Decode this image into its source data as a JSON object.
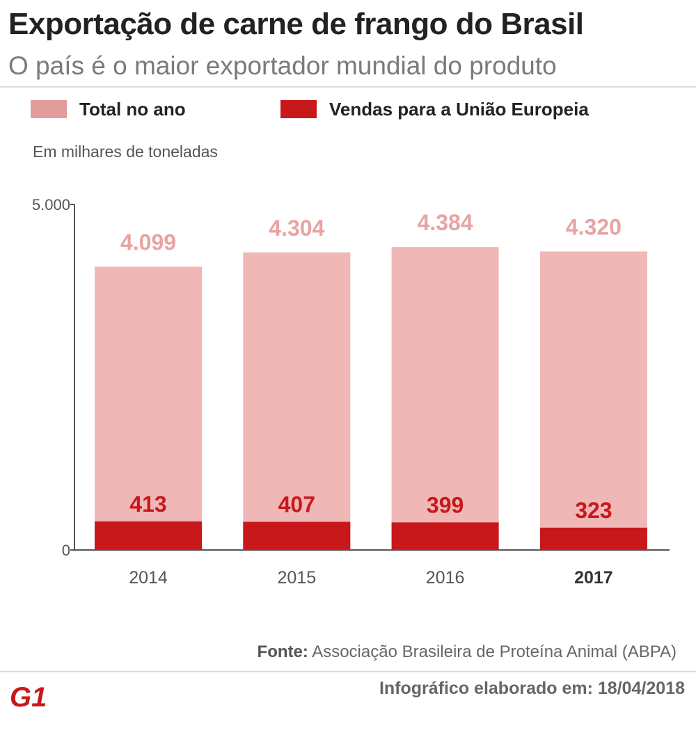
{
  "header": {
    "title": "Exportação de carne de frango do Brasil",
    "subtitle": "O país é o maior exportador mundial do produto"
  },
  "legend": {
    "total_label": "Total no ano",
    "eu_label": "Vendas para a União Europeia"
  },
  "colors": {
    "total": "#f0b7b7",
    "total_swatch": "#e29b9b",
    "total_label": "#e8a3a3",
    "eu": "#c8181b",
    "axis": "#555555"
  },
  "unit_note": "Em milhares de toneladas",
  "chart_data": {
    "type": "bar",
    "categories": [
      "2014",
      "2015",
      "2016",
      "2017"
    ],
    "highlight_category": "2017",
    "series": [
      {
        "name": "Total no ano",
        "values": [
          4099,
          4304,
          4384,
          4320
        ],
        "labels": [
          "4.099",
          "4.304",
          "4.384",
          "4.320"
        ]
      },
      {
        "name": "Vendas para a União Europeia",
        "values": [
          413,
          407,
          399,
          323
        ],
        "labels": [
          "413",
          "407",
          "399",
          "323"
        ]
      }
    ],
    "ylim": [
      0,
      5000
    ],
    "yticks": [
      0,
      5000
    ],
    "ytick_labels": [
      "0",
      "5.000"
    ],
    "grid": false
  },
  "footer": {
    "source_prefix": "Fonte:",
    "source_text": "Associação Brasileira de Proteína Animal (ABPA)",
    "credit": "Infográfico elaborado em: 18/04/2018",
    "logo_text": "G1"
  }
}
